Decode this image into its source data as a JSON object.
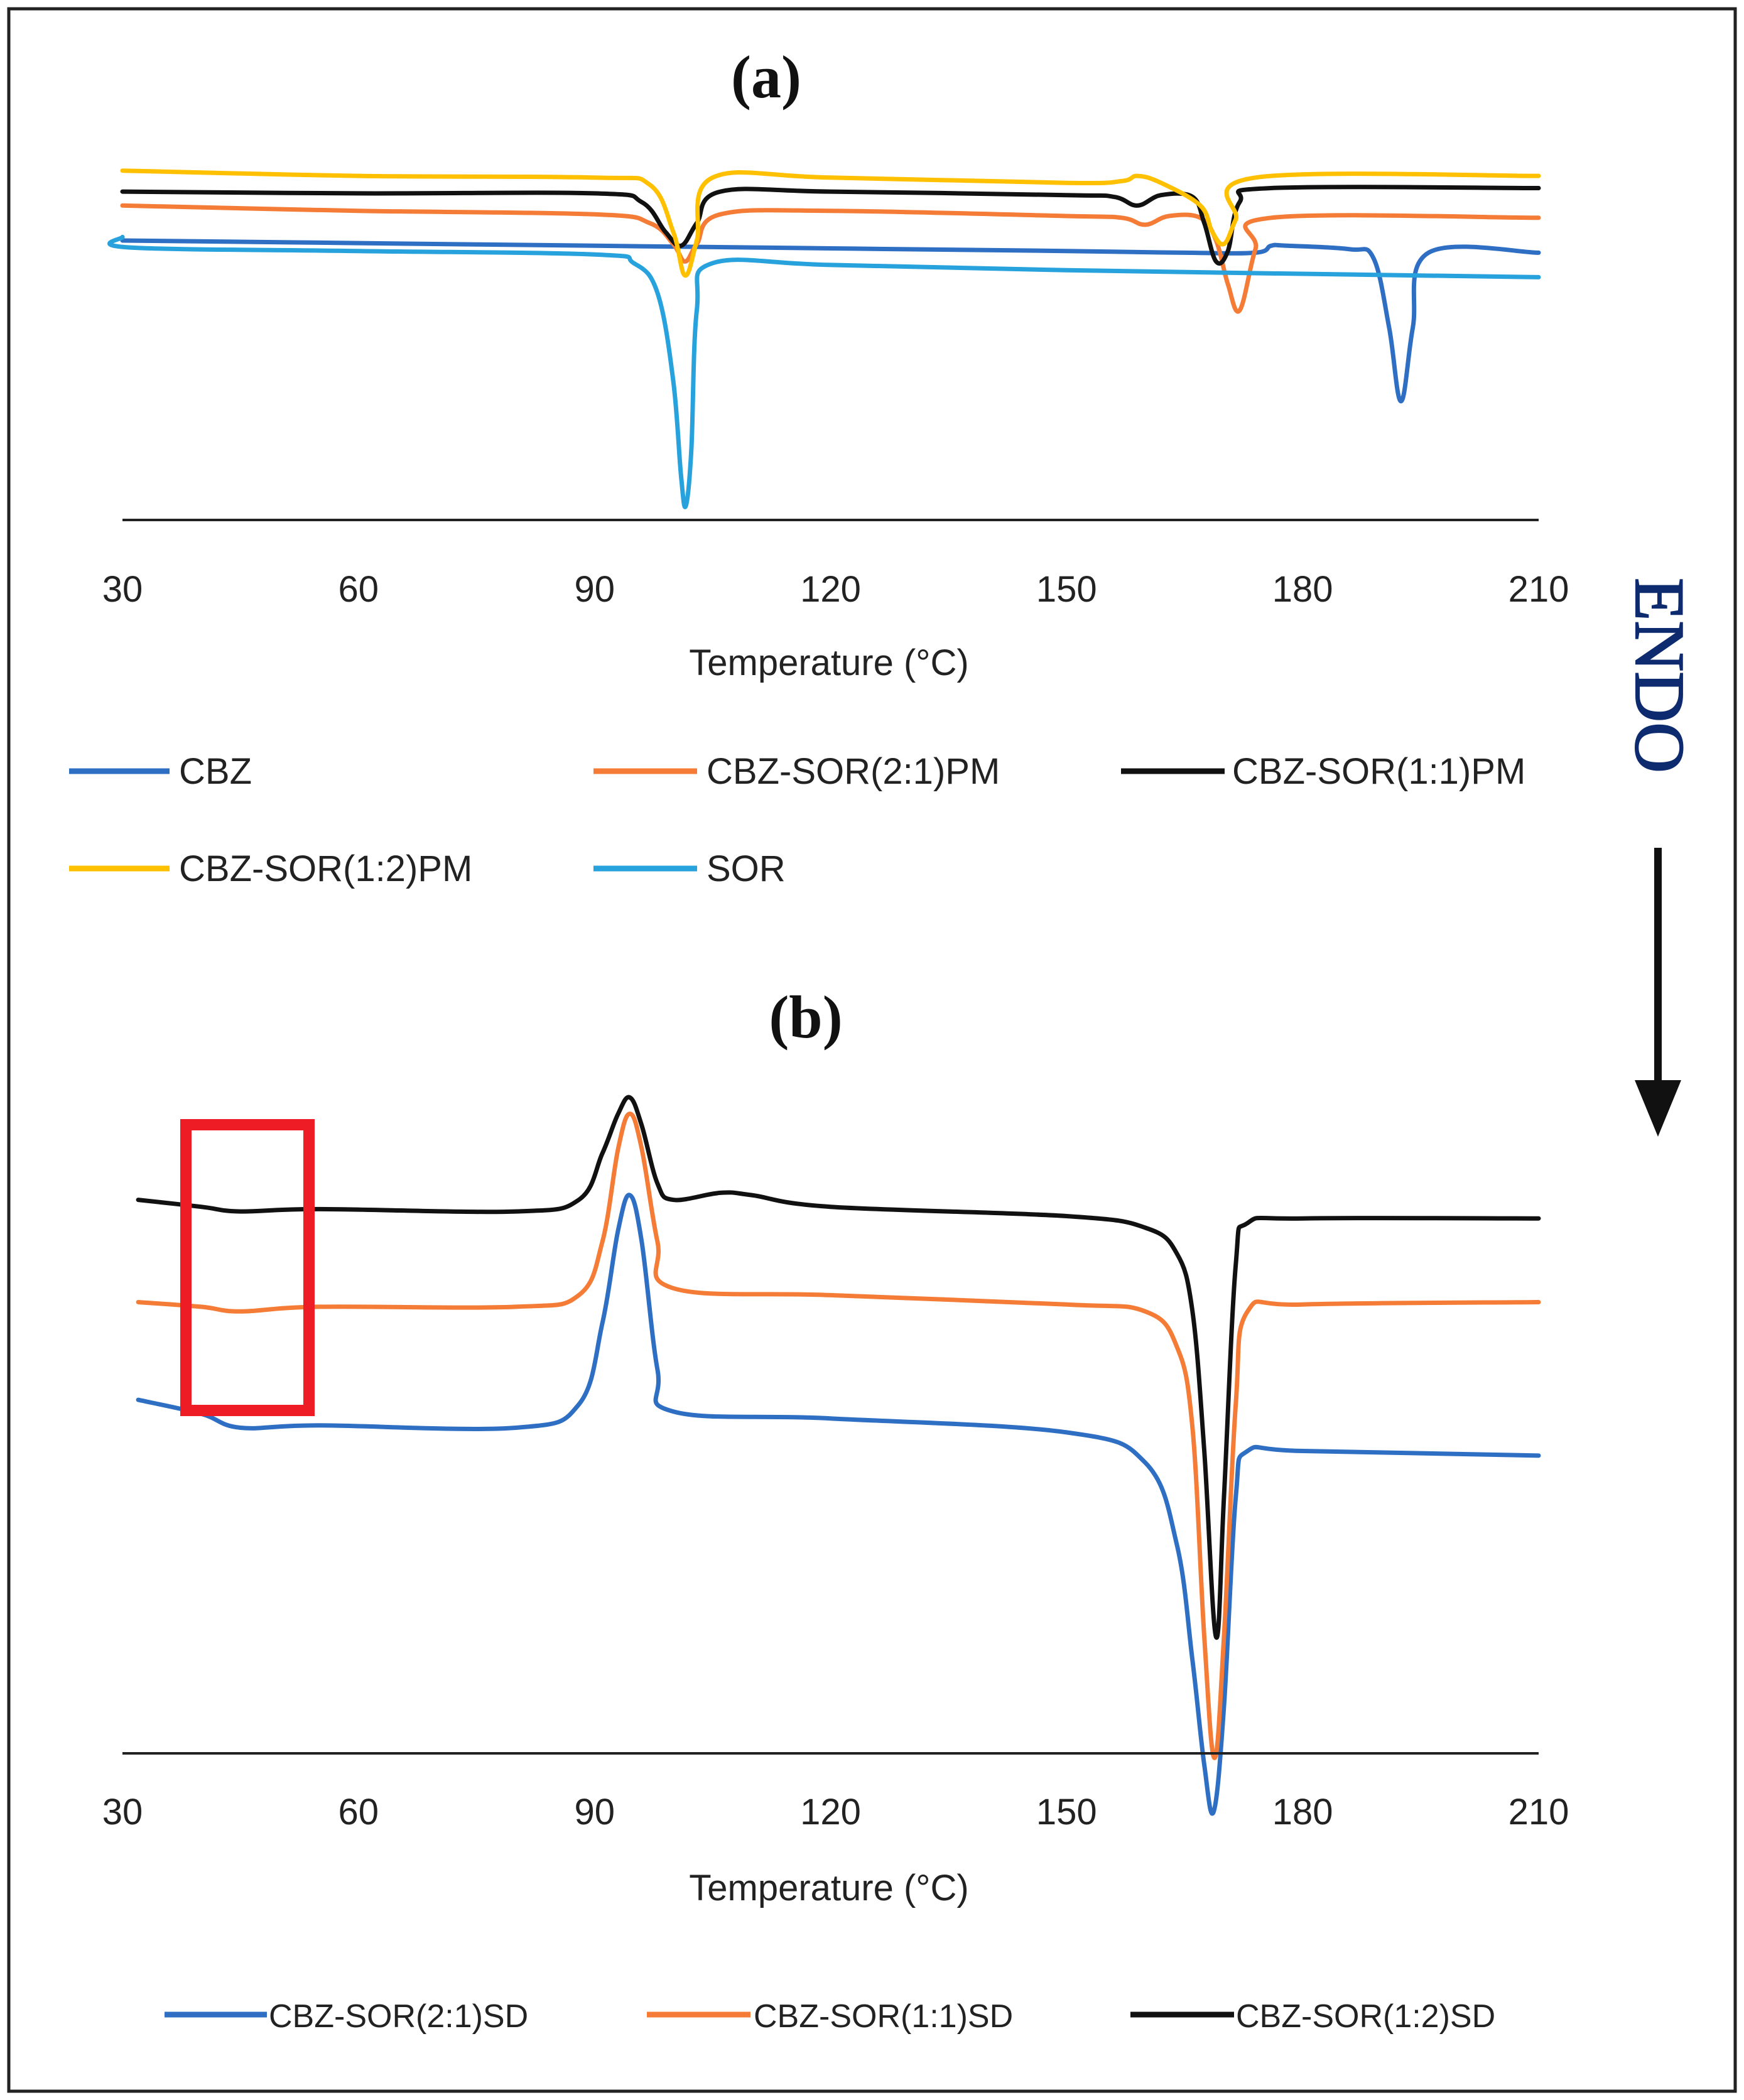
{
  "chart_data": [
    {
      "panel": "(a)",
      "type": "line",
      "title": "(a)",
      "xlabel": "Temperature (°C)",
      "ylabel": "",
      "xlim": [
        30,
        210
      ],
      "ylim": [
        -1.6,
        0.55
      ],
      "xticks": [
        30,
        60,
        90,
        120,
        150,
        180,
        210
      ],
      "grid": false,
      "legend_position": "bottom",
      "series": [
        {
          "name": "CBZ",
          "color": "#2e6fc4",
          "x": [
            30,
            60,
            90,
            120,
            150,
            165,
            174,
            176,
            178,
            186,
            189,
            191,
            192.5,
            194,
            196,
            210
          ],
          "y": [
            0,
            -0.015,
            -0.03,
            -0.045,
            -0.06,
            -0.07,
            -0.07,
            -0.03,
            -0.03,
            -0.05,
            -0.1,
            -0.5,
            -0.92,
            -0.5,
            -0.07,
            -0.07
          ]
        },
        {
          "name": "CBZ-SOR(2:1)PM",
          "color": "#f47c36",
          "x": [
            30,
            60,
            90,
            97,
            100,
            101.5,
            103,
            106,
            120,
            150,
            157,
            160,
            163,
            167,
            169,
            170.5,
            172,
            174,
            176,
            210
          ],
          "y": [
            0.2,
            0.17,
            0.15,
            0.1,
            -0.02,
            -0.12,
            -0.02,
            0.15,
            0.17,
            0.14,
            0.13,
            0.09,
            0.14,
            0.13,
            0.0,
            -0.25,
            -0.4,
            -0.05,
            0.13,
            0.13
          ]
        },
        {
          "name": "CBZ-SOR(1:1)PM",
          "color": "#111111",
          "x": [
            30,
            60,
            90,
            96,
            99,
            101,
            103,
            106,
            120,
            150,
            156,
            159,
            162,
            166,
            167.5,
            169,
            170.5,
            172,
            176,
            210
          ],
          "y": [
            0.28,
            0.27,
            0.27,
            0.22,
            0.05,
            -0.03,
            0.1,
            0.28,
            0.28,
            0.26,
            0.25,
            0.2,
            0.26,
            0.25,
            0.1,
            -0.12,
            -0.06,
            0.22,
            0.3,
            0.3
          ]
        },
        {
          "name": "CBZ-SOR(1:2)PM",
          "color": "#ffc000",
          "x": [
            30,
            60,
            90,
            97,
            100,
            101.5,
            103,
            105,
            120,
            150,
            157,
            159,
            162,
            167,
            168.5,
            170,
            171.5,
            174,
            210
          ],
          "y": [
            0.4,
            0.37,
            0.36,
            0.32,
            0.05,
            -0.2,
            0.0,
            0.36,
            0.36,
            0.33,
            0.34,
            0.37,
            0.33,
            0.2,
            0.05,
            -0.02,
            0.12,
            0.36,
            0.37
          ]
        },
        {
          "name": "SOR",
          "color": "#27a2dc",
          "x": [
            30,
            31,
            60,
            90,
            95,
            98,
            100,
            101,
            101.6,
            102.3,
            103,
            105,
            120,
            150,
            210
          ],
          "y": [
            0.02,
            -0.04,
            -0.06,
            -0.08,
            -0.13,
            -0.3,
            -0.8,
            -1.35,
            -1.52,
            -1.2,
            -0.4,
            -0.13,
            -0.14,
            -0.17,
            -0.21
          ]
        }
      ]
    },
    {
      "panel": "(b)",
      "type": "line",
      "title": "(b)",
      "xlabel": "Temperature (°C)",
      "ylabel": "",
      "xlim": [
        30,
        210
      ],
      "ylim": [
        -2.4,
        0.4
      ],
      "xticks": [
        30,
        60,
        90,
        120,
        150,
        180,
        210
      ],
      "grid": false,
      "legend_position": "bottom",
      "series": [
        {
          "name": "CBZ-SOR(2:1)SD",
          "color": "#2e6fc4",
          "x": [
            32,
            40,
            45,
            55,
            80,
            88,
            91,
            93,
            94.5,
            96,
            98,
            100,
            120,
            150,
            160,
            164,
            166,
            167.5,
            168.7,
            170,
            171.5,
            173,
            180,
            210
          ],
          "y": [
            -0.88,
            -0.94,
            -1.0,
            -0.99,
            -1.0,
            -0.9,
            -0.55,
            -0.15,
            0.0,
            -0.2,
            -0.75,
            -0.93,
            -0.96,
            -1.02,
            -1.15,
            -1.5,
            -2.0,
            -2.45,
            -2.65,
            -2.2,
            -1.3,
            -1.1,
            -1.1,
            -1.12
          ]
        },
        {
          "name": "CBZ-SOR(1:1)SD",
          "color": "#f47c36",
          "x": [
            32,
            40,
            45,
            55,
            80,
            88,
            91,
            93,
            94.5,
            96,
            98,
            100,
            120,
            150,
            160,
            164,
            166,
            167.5,
            168.8,
            170,
            171.5,
            173,
            180,
            210
          ],
          "y": [
            -0.46,
            -0.48,
            -0.5,
            -0.48,
            -0.48,
            -0.43,
            -0.2,
            0.2,
            0.35,
            0.2,
            -0.2,
            -0.4,
            -0.43,
            -0.47,
            -0.5,
            -0.65,
            -1.0,
            -1.9,
            -2.42,
            -1.9,
            -0.9,
            -0.5,
            -0.47,
            -0.46
          ]
        },
        {
          "name": "CBZ-SOR(1:2)SD",
          "color": "#111111",
          "x": [
            32,
            40,
            45,
            55,
            80,
            88,
            91,
            93,
            94.5,
            96,
            98,
            100,
            106,
            110,
            120,
            150,
            160,
            164,
            166,
            167.5,
            169,
            170,
            171.5,
            173,
            180,
            210
          ],
          "y": [
            -0.02,
            -0.05,
            -0.07,
            -0.06,
            -0.07,
            -0.02,
            0.18,
            0.35,
            0.42,
            0.3,
            0.05,
            -0.02,
            0.01,
            0.0,
            -0.05,
            -0.09,
            -0.14,
            -0.25,
            -0.5,
            -1.1,
            -1.9,
            -1.3,
            -0.3,
            -0.12,
            -0.1,
            -0.1
          ]
        }
      ]
    }
  ],
  "side_label": "ENDO",
  "annotation": "red rectangle highlighting 37-53 °C region of (b)"
}
